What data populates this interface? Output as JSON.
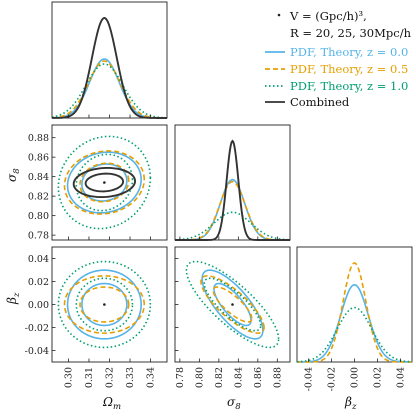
{
  "chart_data": {
    "type": "corner",
    "parameters": [
      "Ω_m",
      "σ_8",
      "β_z"
    ],
    "fiducial": {
      "Ω_m": 0.3175,
      "σ_8": 0.834,
      "β_z": 0.0
    },
    "axes": {
      "omega_m": {
        "range": [
          0.292,
          0.348
        ],
        "ticks": [
          0.3,
          0.31,
          0.32,
          0.33,
          0.34
        ],
        "tick_labels": [
          "0.30",
          "0.31",
          "0.32",
          "0.33",
          "0.34"
        ],
        "label": "Ω"
      },
      "sigma8": {
        "range": [
          0.775,
          0.893
        ],
        "ticks": [
          0.78,
          0.8,
          0.82,
          0.84,
          0.86,
          0.88
        ],
        "tick_labels": [
          "0.78",
          "0.80",
          "0.82",
          "0.84",
          "0.86",
          "0.88"
        ],
        "label": "σ"
      },
      "beta_z": {
        "range": [
          -0.05,
          0.05
        ],
        "ticks": [
          -0.04,
          -0.02,
          0.0,
          0.02,
          0.04
        ],
        "tick_labels": [
          "-0.04",
          "-0.02",
          "0.00",
          "0.02",
          "0.04"
        ],
        "label": "β"
      }
    },
    "legend": {
      "header_line1": "V = (Gpc/h)³,",
      "header_line2": "R = 20, 25, 30Mpc/h",
      "entries": [
        {
          "name": "PDF, Theory, z = 0.0",
          "color": "#56b4e9",
          "dash": "solid"
        },
        {
          "name": "PDF, Theory, z = 0.5",
          "color": "#e69f00",
          "dash": "dashed"
        },
        {
          "name": "PDF, Theory, z = 1.0",
          "color": "#009e73",
          "dash": "dotted"
        },
        {
          "name": "Combined",
          "color": "#333333",
          "dash": "solid"
        }
      ]
    },
    "series": [
      {
        "name": "PDF, Theory, z = 0.0",
        "sigma": {
          "Ω_m": 0.0072,
          "σ_8": 0.0125,
          "β_z": 0.012
        },
        "rho": {
          "om_s8": 0.1,
          "om_bz": 0.0,
          "s8_bz": -0.75
        }
      },
      {
        "name": "PDF, Theory, z = 0.5",
        "sigma": {
          "Ω_m": 0.0078,
          "σ_8": 0.013,
          "β_z": 0.01
        },
        "rho": {
          "om_s8": 0.1,
          "om_bz": 0.0,
          "s8_bz": -0.8
        }
      },
      {
        "name": "PDF, Theory, z = 1.0",
        "sigma": {
          "Ω_m": 0.009,
          "σ_8": 0.019,
          "β_z": 0.015
        },
        "rho": {
          "om_s8": 0.1,
          "om_bz": 0.0,
          "s8_bz": -0.8
        }
      },
      {
        "name": "Combined",
        "sigma": {
          "Ω_m": 0.006,
          "σ_8": 0.006,
          "β_z": 0.0
        },
        "rho": {
          "om_s8": 0.1,
          "om_bz": 0.0,
          "s8_bz": 0.0
        }
      }
    ]
  }
}
